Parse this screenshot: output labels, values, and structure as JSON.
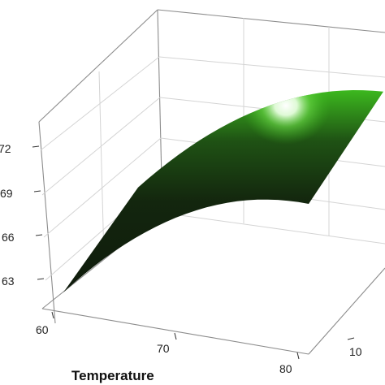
{
  "chart_data": {
    "type": "surface",
    "xlabel": "Temperature",
    "ylabel": "",
    "zlabel": "",
    "x_ticks": [
      "60",
      "70",
      "80"
    ],
    "y_ticks": [
      "10"
    ],
    "z_ticks": [
      "63",
      "66",
      "69",
      "72"
    ],
    "xlim": [
      60,
      80
    ],
    "zlim": [
      62,
      74
    ],
    "surface_color": "#3cb81e",
    "surface_shadow_color": "#0e1a0a",
    "surface_points": [
      {
        "temperature": 60,
        "position": "front",
        "z": 63.0
      },
      {
        "temperature": 60,
        "position": "back",
        "z": 69.4
      },
      {
        "temperature": 70,
        "position": "front",
        "z": 66.6
      },
      {
        "temperature": 70,
        "position": "back",
        "z": 73.0
      },
      {
        "temperature": 80,
        "position": "front",
        "z": 65.5
      },
      {
        "temperature": 80,
        "position": "back",
        "z": 72.4
      }
    ]
  }
}
